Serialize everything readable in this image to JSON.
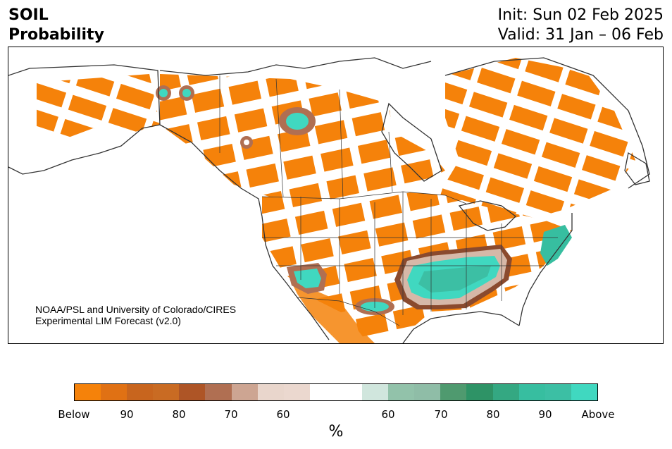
{
  "header": {
    "title_line1": "SOIL",
    "title_line2": "Probability",
    "init": "Init: Sun 02 Feb 2025",
    "valid": "Valid: 31 Jan – 06 Feb"
  },
  "map": {
    "region": "North America",
    "credit_line1": "NOAA/PSL and University of Colorado/CIRES",
    "credit_line2": "Experimental LIM Forecast (v2.0)"
  },
  "colorbar": {
    "unit": "%",
    "colors": [
      "#f5820a",
      "#e07114",
      "#c8651e",
      "#c96b23",
      "#ae5526",
      "#b06f52",
      "#cda592",
      "#e9d6cc",
      "#ebd8cf",
      "#ffffff",
      "#ffffff",
      "#d0e6dd",
      "#92c2aa",
      "#8fbda7",
      "#4f9a6f",
      "#2e9366",
      "#34a882",
      "#37bea0",
      "#3cbfa4",
      "#40d8c0"
    ],
    "tick_labels": [
      "Below",
      "90",
      "80",
      "70",
      "60",
      "60",
      "70",
      "80",
      "90",
      "Above"
    ],
    "colors_named": {
      "below": "#f5820a",
      "neutral": "#ffffff",
      "above": "#40d8c0"
    }
  }
}
